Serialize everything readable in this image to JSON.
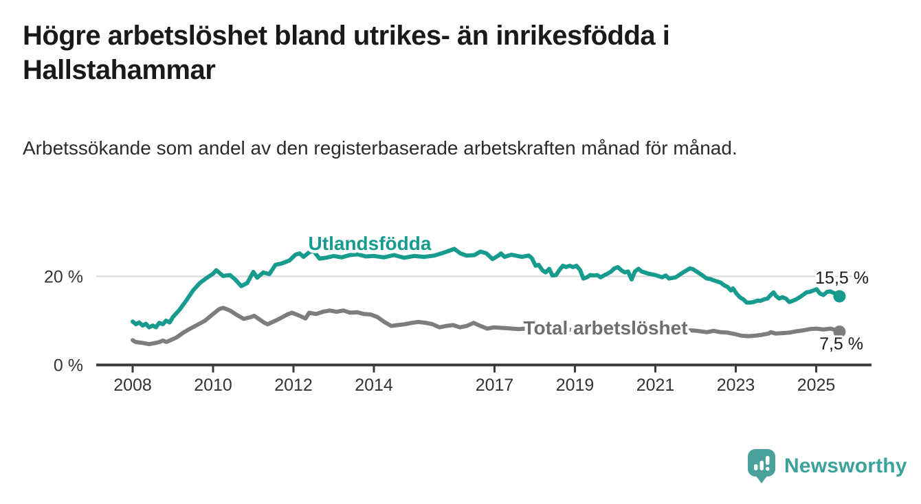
{
  "header": {
    "title": "Högre arbetslöshet bland utrikes- än inrikesfödda i Hallstahammar",
    "subtitle": "Arbetssökande som andel av den registerbaserade arbetskraften månad för månad."
  },
  "footer": {
    "brand": "Newsworthy",
    "brand_color": "#3aa29a",
    "badge_color": "#4aa09a"
  },
  "chart_data": {
    "type": "line",
    "title": "Högre arbetslöshet bland utrikes- än inrikesfödda i Hallstahammar",
    "xlabel": "",
    "ylabel": "Arbetssökande som andel av den registerbaserade arbetskraften",
    "unit": "%",
    "grid": "single horizontal gridline at 20 %",
    "legend_position": "inline labels on lines",
    "x_axis": {
      "range": [
        2007.9,
        2026.3
      ],
      "ticks": [
        2008,
        2010,
        2012,
        2014,
        2017,
        2019,
        2021,
        2023,
        2025
      ],
      "tick_labels": [
        "2008",
        "2010",
        "2012",
        "2014",
        "2017",
        "2019",
        "2021",
        "2023",
        "2025"
      ]
    },
    "y_axis": {
      "range": [
        0,
        30
      ],
      "ticks": [
        {
          "value": 20,
          "label": "20 %",
          "gridline": true
        },
        {
          "value": 0,
          "label": "0 %",
          "gridline": false
        }
      ]
    },
    "series": [
      {
        "id": "utlandsfodda",
        "name": "Utlandsfödda",
        "color": "#169b8e",
        "end_label": "15,5 %",
        "end_value": 15.5,
        "points": [
          [
            2008.0,
            9.8
          ],
          [
            2008.08,
            9.2
          ],
          [
            2008.16,
            9.6
          ],
          [
            2008.25,
            8.9
          ],
          [
            2008.33,
            9.3
          ],
          [
            2008.41,
            8.5
          ],
          [
            2008.5,
            8.9
          ],
          [
            2008.58,
            8.5
          ],
          [
            2008.66,
            9.5
          ],
          [
            2008.75,
            9.2
          ],
          [
            2008.83,
            10.0
          ],
          [
            2008.92,
            9.6
          ],
          [
            2009.0,
            10.8
          ],
          [
            2009.17,
            12.5
          ],
          [
            2009.33,
            14.5
          ],
          [
            2009.5,
            16.8
          ],
          [
            2009.67,
            18.5
          ],
          [
            2009.83,
            19.6
          ],
          [
            2010.0,
            20.6
          ],
          [
            2010.08,
            21.4
          ],
          [
            2010.25,
            20.1
          ],
          [
            2010.42,
            20.3
          ],
          [
            2010.55,
            19.3
          ],
          [
            2010.7,
            17.8
          ],
          [
            2010.85,
            18.5
          ],
          [
            2011.0,
            21.0
          ],
          [
            2011.1,
            19.7
          ],
          [
            2011.25,
            20.9
          ],
          [
            2011.4,
            20.5
          ],
          [
            2011.55,
            22.6
          ],
          [
            2011.7,
            22.9
          ],
          [
            2011.9,
            23.6
          ],
          [
            2012.05,
            24.9
          ],
          [
            2012.15,
            25.2
          ],
          [
            2012.25,
            24.4
          ],
          [
            2012.4,
            25.5
          ],
          [
            2012.5,
            25.7
          ],
          [
            2012.65,
            24.0
          ],
          [
            2012.8,
            24.2
          ],
          [
            2013.0,
            24.6
          ],
          [
            2013.2,
            24.3
          ],
          [
            2013.4,
            24.8
          ],
          [
            2013.6,
            25.0
          ],
          [
            2013.8,
            24.5
          ],
          [
            2014.0,
            24.6
          ],
          [
            2014.25,
            24.3
          ],
          [
            2014.5,
            24.8
          ],
          [
            2014.75,
            24.2
          ],
          [
            2015.0,
            24.6
          ],
          [
            2015.25,
            24.4
          ],
          [
            2015.5,
            24.7
          ],
          [
            2015.75,
            25.4
          ],
          [
            2016.0,
            26.2
          ],
          [
            2016.15,
            25.2
          ],
          [
            2016.3,
            24.7
          ],
          [
            2016.5,
            24.8
          ],
          [
            2016.65,
            25.6
          ],
          [
            2016.8,
            25.2
          ],
          [
            2016.95,
            23.9
          ],
          [
            2017.1,
            24.7
          ],
          [
            2017.16,
            25.2
          ],
          [
            2017.25,
            24.4
          ],
          [
            2017.42,
            24.9
          ],
          [
            2017.68,
            24.4
          ],
          [
            2017.85,
            24.7
          ],
          [
            2017.93,
            24.1
          ],
          [
            2018.02,
            22.4
          ],
          [
            2018.1,
            22.6
          ],
          [
            2018.19,
            21.4
          ],
          [
            2018.27,
            20.9
          ],
          [
            2018.36,
            21.7
          ],
          [
            2018.44,
            20.2
          ],
          [
            2018.53,
            20.3
          ],
          [
            2018.61,
            21.4
          ],
          [
            2018.7,
            22.4
          ],
          [
            2018.78,
            22.1
          ],
          [
            2018.87,
            22.4
          ],
          [
            2018.95,
            22.1
          ],
          [
            2019.04,
            22.4
          ],
          [
            2019.13,
            21.4
          ],
          [
            2019.21,
            19.5
          ],
          [
            2019.3,
            19.8
          ],
          [
            2019.38,
            20.3
          ],
          [
            2019.47,
            20.2
          ],
          [
            2019.55,
            20.3
          ],
          [
            2019.64,
            19.8
          ],
          [
            2019.72,
            20.2
          ],
          [
            2019.81,
            20.6
          ],
          [
            2019.9,
            21.1
          ],
          [
            2019.98,
            21.8
          ],
          [
            2020.07,
            22.1
          ],
          [
            2020.15,
            21.4
          ],
          [
            2020.24,
            20.9
          ],
          [
            2020.32,
            21.1
          ],
          [
            2020.41,
            19.3
          ],
          [
            2020.49,
            21.1
          ],
          [
            2020.58,
            21.7
          ],
          [
            2020.66,
            21.1
          ],
          [
            2020.83,
            20.6
          ],
          [
            2021.0,
            20.3
          ],
          [
            2021.17,
            19.8
          ],
          [
            2021.26,
            20.2
          ],
          [
            2021.34,
            19.5
          ],
          [
            2021.51,
            19.8
          ],
          [
            2021.69,
            20.9
          ],
          [
            2021.86,
            21.8
          ],
          [
            2021.94,
            21.6
          ],
          [
            2022.11,
            20.6
          ],
          [
            2022.28,
            19.5
          ],
          [
            2022.37,
            19.4
          ],
          [
            2022.45,
            19.1
          ],
          [
            2022.62,
            18.6
          ],
          [
            2022.71,
            18.0
          ],
          [
            2022.8,
            17.6
          ],
          [
            2022.88,
            16.8
          ],
          [
            2022.93,
            17.3
          ],
          [
            2023.02,
            16.1
          ],
          [
            2023.1,
            15.3
          ],
          [
            2023.19,
            14.8
          ],
          [
            2023.27,
            14.1
          ],
          [
            2023.36,
            14.1
          ],
          [
            2023.44,
            14.2
          ],
          [
            2023.53,
            14.5
          ],
          [
            2023.62,
            14.5
          ],
          [
            2023.7,
            14.8
          ],
          [
            2023.79,
            15.0
          ],
          [
            2023.87,
            15.8
          ],
          [
            2023.94,
            16.4
          ],
          [
            2024.0,
            15.6
          ],
          [
            2024.08,
            15.0
          ],
          [
            2024.16,
            15.3
          ],
          [
            2024.25,
            15.0
          ],
          [
            2024.33,
            14.2
          ],
          [
            2024.42,
            14.5
          ],
          [
            2024.5,
            14.8
          ],
          [
            2024.59,
            15.3
          ],
          [
            2024.67,
            15.8
          ],
          [
            2024.76,
            16.4
          ],
          [
            2024.84,
            16.5
          ],
          [
            2024.93,
            16.8
          ],
          [
            2025.01,
            17.1
          ],
          [
            2025.1,
            16.1
          ],
          [
            2025.18,
            15.8
          ],
          [
            2025.27,
            16.5
          ],
          [
            2025.35,
            16.6
          ],
          [
            2025.45,
            16.2
          ],
          [
            2025.58,
            15.5
          ]
        ]
      },
      {
        "id": "total",
        "name": "Total arbetslöshet",
        "color": "#7d7d7d",
        "end_label": "7,5 %",
        "end_value": 7.5,
        "points": [
          [
            2008.0,
            5.6
          ],
          [
            2008.07,
            5.2
          ],
          [
            2008.24,
            5.0
          ],
          [
            2008.41,
            4.7
          ],
          [
            2008.58,
            5.0
          ],
          [
            2008.67,
            5.2
          ],
          [
            2008.75,
            5.5
          ],
          [
            2008.84,
            5.2
          ],
          [
            2008.92,
            5.5
          ],
          [
            2009.09,
            6.2
          ],
          [
            2009.26,
            7.3
          ],
          [
            2009.43,
            8.2
          ],
          [
            2009.6,
            9.0
          ],
          [
            2009.8,
            10.0
          ],
          [
            2010.0,
            11.5
          ],
          [
            2010.15,
            12.6
          ],
          [
            2010.25,
            12.9
          ],
          [
            2010.42,
            12.3
          ],
          [
            2010.59,
            11.3
          ],
          [
            2010.76,
            10.4
          ],
          [
            2010.94,
            10.8
          ],
          [
            2011.02,
            11.1
          ],
          [
            2011.28,
            9.5
          ],
          [
            2011.36,
            9.2
          ],
          [
            2011.62,
            10.3
          ],
          [
            2011.87,
            11.5
          ],
          [
            2011.96,
            11.8
          ],
          [
            2012.13,
            11.2
          ],
          [
            2012.3,
            10.5
          ],
          [
            2012.39,
            11.8
          ],
          [
            2012.56,
            11.5
          ],
          [
            2012.73,
            12.0
          ],
          [
            2012.9,
            12.3
          ],
          [
            2013.07,
            12.0
          ],
          [
            2013.24,
            12.3
          ],
          [
            2013.41,
            11.8
          ],
          [
            2013.58,
            11.9
          ],
          [
            2013.75,
            11.5
          ],
          [
            2013.92,
            11.4
          ],
          [
            2014.09,
            10.8
          ],
          [
            2014.26,
            9.7
          ],
          [
            2014.43,
            8.8
          ],
          [
            2014.6,
            9.0
          ],
          [
            2014.77,
            9.2
          ],
          [
            2014.94,
            9.5
          ],
          [
            2015.11,
            9.7
          ],
          [
            2015.29,
            9.5
          ],
          [
            2015.46,
            9.2
          ],
          [
            2015.63,
            8.5
          ],
          [
            2015.8,
            8.8
          ],
          [
            2015.97,
            9.0
          ],
          [
            2016.14,
            8.5
          ],
          [
            2016.31,
            8.8
          ],
          [
            2016.48,
            9.5
          ],
          [
            2016.65,
            8.8
          ],
          [
            2016.82,
            8.2
          ],
          [
            2016.99,
            8.5
          ],
          [
            2017.3,
            8.3
          ],
          [
            2017.6,
            8.1
          ],
          [
            2017.9,
            8.3
          ],
          [
            2018.2,
            8.0
          ],
          [
            2018.5,
            8.2
          ],
          [
            2018.8,
            7.9
          ],
          [
            2019.1,
            8.0
          ],
          [
            2019.4,
            7.8
          ],
          [
            2019.7,
            8.0
          ],
          [
            2020.0,
            8.3
          ],
          [
            2020.3,
            8.8
          ],
          [
            2020.6,
            8.6
          ],
          [
            2020.9,
            8.3
          ],
          [
            2021.3,
            8.0
          ],
          [
            2021.7,
            7.9
          ],
          [
            2022.04,
            7.7
          ],
          [
            2022.28,
            7.4
          ],
          [
            2022.45,
            7.7
          ],
          [
            2022.62,
            7.4
          ],
          [
            2022.8,
            7.3
          ],
          [
            2022.97,
            7.0
          ],
          [
            2023.14,
            6.6
          ],
          [
            2023.31,
            6.5
          ],
          [
            2023.48,
            6.6
          ],
          [
            2023.65,
            6.8
          ],
          [
            2023.82,
            7.1
          ],
          [
            2023.87,
            7.4
          ],
          [
            2023.99,
            7.1
          ],
          [
            2024.16,
            7.2
          ],
          [
            2024.33,
            7.3
          ],
          [
            2024.5,
            7.6
          ],
          [
            2024.67,
            7.8
          ],
          [
            2024.84,
            8.1
          ],
          [
            2025.01,
            8.2
          ],
          [
            2025.18,
            8.0
          ],
          [
            2025.35,
            8.2
          ],
          [
            2025.45,
            8.0
          ],
          [
            2025.58,
            7.5
          ]
        ]
      }
    ]
  }
}
